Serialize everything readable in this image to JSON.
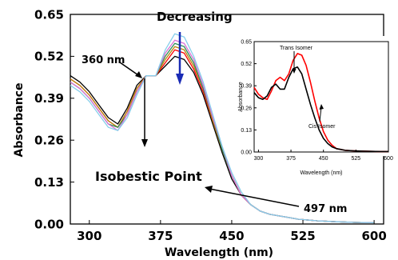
{
  "chart_data": [
    {
      "type": "line",
      "xlabel": "Wavelength (nm)",
      "ylabel": "Absorbance",
      "xlim": [
        280,
        610
      ],
      "ylim": [
        0,
        0.65
      ],
      "xticks": [
        "300",
        "375",
        "450",
        "525",
        "600"
      ],
      "yticks": [
        "0.00",
        "0.13",
        "0.26",
        "0.39",
        "0.52",
        "0.65"
      ],
      "grid": false,
      "x": [
        280,
        290,
        300,
        310,
        320,
        330,
        340,
        350,
        360,
        370,
        380,
        390,
        400,
        410,
        420,
        430,
        440,
        450,
        460,
        470,
        480,
        490,
        500,
        510,
        520,
        540,
        560,
        580,
        600
      ],
      "series": [
        {
          "color": "#000000",
          "values": [
            0.46,
            0.44,
            0.41,
            0.37,
            0.33,
            0.31,
            0.36,
            0.43,
            0.46,
            0.46,
            0.49,
            0.52,
            0.51,
            0.47,
            0.4,
            0.31,
            0.22,
            0.14,
            0.09,
            0.06,
            0.04,
            0.03,
            0.025,
            0.02,
            0.015,
            0.01,
            0.007,
            0.005,
            0.004
          ]
        },
        {
          "color": "#ff0000",
          "values": [
            0.45,
            0.43,
            0.4,
            0.36,
            0.32,
            0.3,
            0.35,
            0.42,
            0.46,
            0.46,
            0.5,
            0.54,
            0.53,
            0.48,
            0.41,
            0.32,
            0.23,
            0.15,
            0.09,
            0.06,
            0.04,
            0.03,
            0.025,
            0.02,
            0.015,
            0.01,
            0.007,
            0.005,
            0.004
          ]
        },
        {
          "color": "#b8860b",
          "values": [
            0.45,
            0.43,
            0.4,
            0.36,
            0.32,
            0.3,
            0.35,
            0.42,
            0.46,
            0.46,
            0.51,
            0.55,
            0.54,
            0.49,
            0.42,
            0.32,
            0.23,
            0.15,
            0.09,
            0.06,
            0.04,
            0.03,
            0.025,
            0.02,
            0.015,
            0.01,
            0.007,
            0.005,
            0.004
          ]
        },
        {
          "color": "#2e8b57",
          "values": [
            0.44,
            0.42,
            0.39,
            0.35,
            0.31,
            0.3,
            0.34,
            0.41,
            0.46,
            0.46,
            0.52,
            0.56,
            0.55,
            0.5,
            0.42,
            0.33,
            0.23,
            0.15,
            0.09,
            0.06,
            0.04,
            0.03,
            0.025,
            0.02,
            0.015,
            0.01,
            0.007,
            0.005,
            0.004
          ]
        },
        {
          "color": "#da70d6",
          "values": [
            0.44,
            0.42,
            0.39,
            0.35,
            0.31,
            0.29,
            0.34,
            0.41,
            0.46,
            0.46,
            0.53,
            0.57,
            0.56,
            0.51,
            0.43,
            0.33,
            0.24,
            0.15,
            0.09,
            0.06,
            0.04,
            0.03,
            0.025,
            0.02,
            0.015,
            0.01,
            0.007,
            0.005,
            0.004
          ]
        },
        {
          "color": "#87ceeb",
          "values": [
            0.43,
            0.41,
            0.38,
            0.34,
            0.3,
            0.29,
            0.33,
            0.4,
            0.46,
            0.46,
            0.54,
            0.59,
            0.58,
            0.52,
            0.44,
            0.34,
            0.24,
            0.16,
            0.1,
            0.06,
            0.04,
            0.03,
            0.025,
            0.02,
            0.015,
            0.01,
            0.007,
            0.005,
            0.004
          ]
        }
      ],
      "annotations": {
        "decreasing": "Decreasing",
        "nm360": "360 nm",
        "isobestic": "Isobestic Point",
        "nm497": "497 nm"
      }
    },
    {
      "type": "line",
      "xlabel": "Wavelength (nm)",
      "ylabel": "Absorbance",
      "xlim": [
        290,
        600
      ],
      "ylim": [
        0,
        0.65
      ],
      "xticks": [
        "300",
        "375",
        "450",
        "525",
        "600"
      ],
      "yticks": [
        "0.00",
        "0.13",
        "0.26",
        "0.39",
        "0.52",
        "0.65"
      ],
      "grid": false,
      "x": [
        290,
        300,
        310,
        320,
        330,
        340,
        350,
        360,
        370,
        380,
        390,
        400,
        410,
        420,
        430,
        440,
        450,
        460,
        470,
        480,
        490,
        500,
        520,
        540,
        560,
        580,
        600
      ],
      "series": [
        {
          "name": "Trans Isomer",
          "color": "#ff0000",
          "values": [
            0.38,
            0.34,
            0.32,
            0.31,
            0.36,
            0.42,
            0.44,
            0.42,
            0.46,
            0.54,
            0.58,
            0.57,
            0.51,
            0.41,
            0.3,
            0.2,
            0.12,
            0.07,
            0.04,
            0.02,
            0.015,
            0.01,
            0.007,
            0.005,
            0.004,
            0.003,
            0.003
          ]
        },
        {
          "name": "Cis Isomer",
          "color": "#000000",
          "values": [
            0.35,
            0.32,
            0.31,
            0.33,
            0.38,
            0.4,
            0.37,
            0.37,
            0.44,
            0.49,
            0.5,
            0.46,
            0.37,
            0.28,
            0.2,
            0.13,
            0.08,
            0.05,
            0.03,
            0.02,
            0.015,
            0.01,
            0.007,
            0.005,
            0.004,
            0.003,
            0.003
          ]
        }
      ]
    }
  ]
}
